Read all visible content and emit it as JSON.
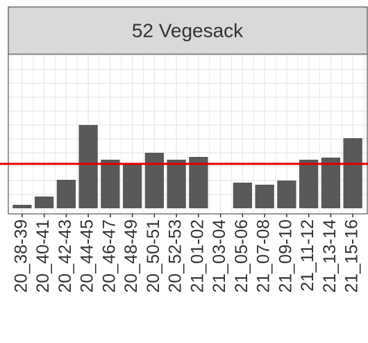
{
  "chart_data": {
    "type": "bar",
    "title": "52 Vegesack",
    "categories": [
      "20_38-39",
      "20_40-41",
      "20_42-43",
      "20_44-45",
      "20_46-47",
      "20_48-49",
      "20_50-51",
      "20_52-53",
      "21_01-02",
      "21_03-04",
      "21_05-06",
      "21_07-08",
      "21_09-10",
      "21_11-12",
      "21_13-14",
      "21_15-16"
    ],
    "values": [
      5,
      17,
      41,
      120,
      70,
      64,
      80,
      70,
      74,
      null,
      37,
      34,
      40,
      70,
      73,
      101
    ],
    "color": "#595959",
    "ylim": [
      0,
      222
    ],
    "ygrid": [
      20,
      40,
      60,
      80,
      100,
      120,
      140,
      160,
      180,
      200,
      220
    ],
    "reference_line": {
      "value": 64,
      "color": "#e00000"
    }
  }
}
